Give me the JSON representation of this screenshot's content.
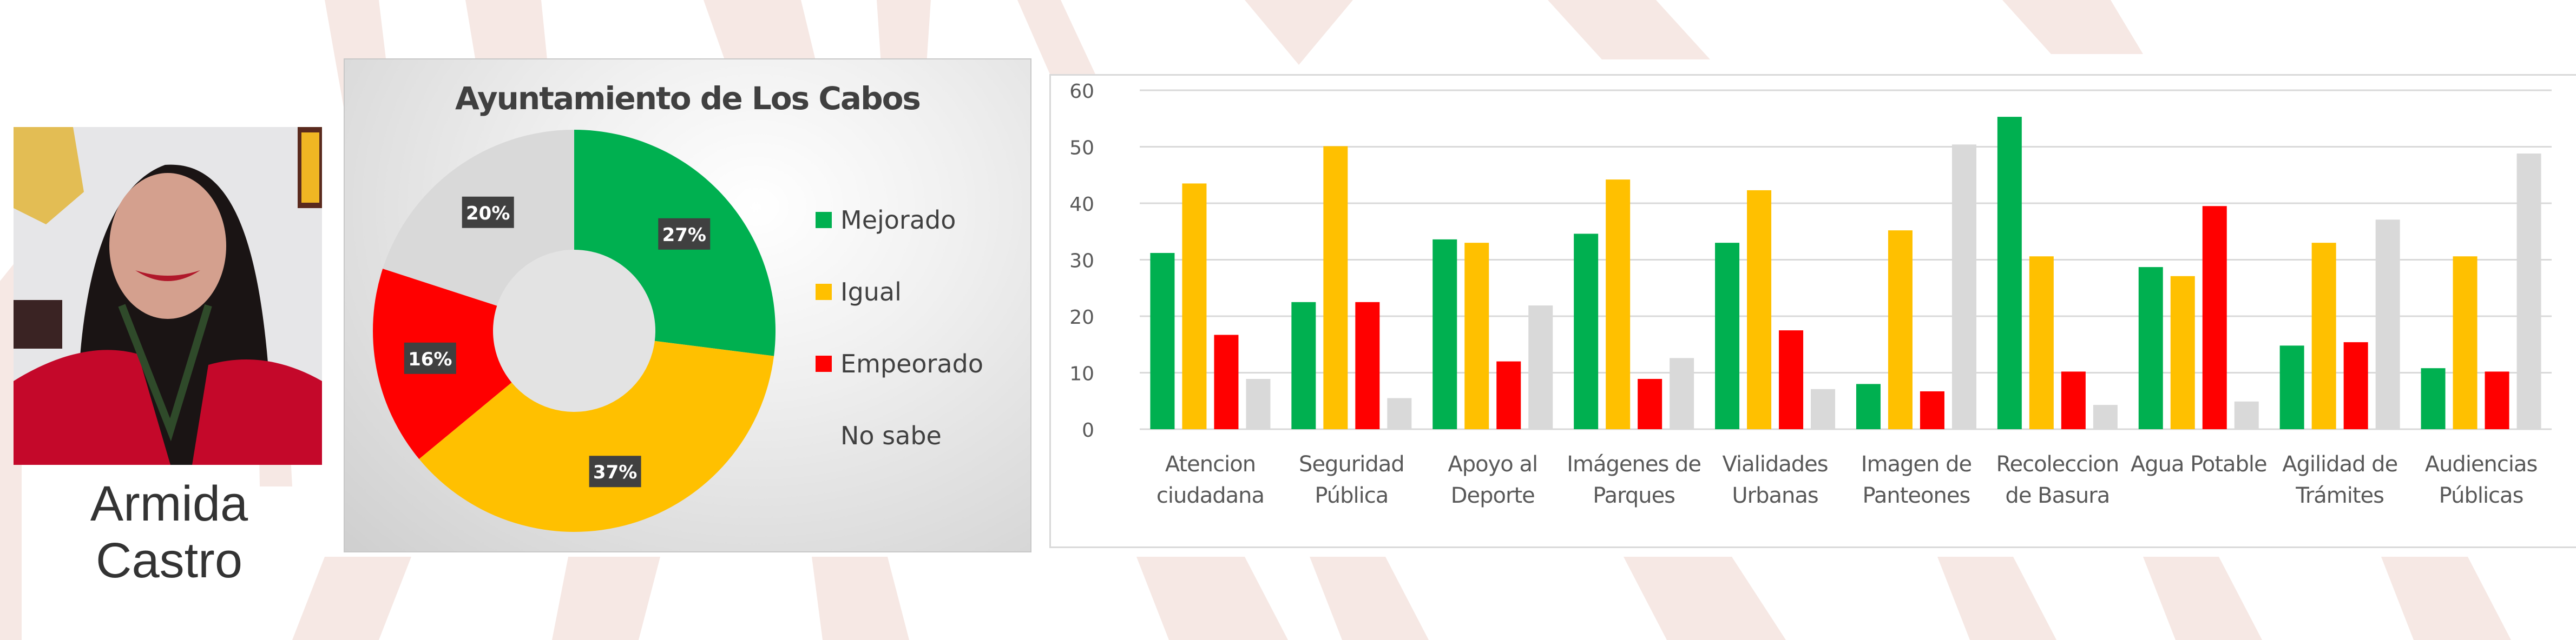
{
  "person": {
    "name": "Armida Castro",
    "photo_alt": "portrait-photo"
  },
  "chart_data": [
    {
      "type": "pie",
      "variant": "donut",
      "title": "Ayuntamiento de Los Cabos",
      "categories": [
        "Mejorado",
        "Igual",
        "Empeorado",
        "No sabe"
      ],
      "values": [
        27,
        37,
        16,
        20
      ],
      "labels": [
        "27%",
        "37%",
        "16%",
        "20%"
      ],
      "colors": [
        "#00B050",
        "#FFC000",
        "#FF0000",
        "#D9D9D9"
      ],
      "legend_position": "right"
    },
    {
      "type": "bar",
      "title": "",
      "xlabel": "",
      "ylabel": "",
      "ylim": [
        0,
        60
      ],
      "yticks": [
        0,
        10,
        20,
        30,
        40,
        50,
        60
      ],
      "grid": true,
      "legend": false,
      "categories": [
        "Atencion ciudadana",
        "Seguridad Pública",
        "Apoyo al Deporte",
        "Imágenes de Parques",
        "Vialidades Urbanas",
        "Imagen de Panteones",
        "Recoleccion de Basura",
        "Agua Potable",
        "Agilidad de Trámites",
        "Audiencias Públicas"
      ],
      "category_lines": [
        [
          "Atencion",
          "ciudadana"
        ],
        [
          "Seguridad",
          "Pública"
        ],
        [
          "Apoyo al",
          "Deporte"
        ],
        [
          "Imágenes de",
          "Parques"
        ],
        [
          "Vialidades",
          "Urbanas"
        ],
        [
          "Imagen de",
          "Panteones"
        ],
        [
          "Recoleccion",
          "de Basura"
        ],
        [
          "Agua Potable",
          ""
        ],
        [
          "Agilidad de",
          "Trámites"
        ],
        [
          "Audiencias",
          "Públicas"
        ]
      ],
      "series": [
        {
          "name": "Mejorado",
          "color": "#00B050",
          "values": [
            31.2,
            22.5,
            33.6,
            34.6,
            33.0,
            8.0,
            55.3,
            28.7,
            14.8,
            10.8
          ]
        },
        {
          "name": "Igual",
          "color": "#FFC000",
          "values": [
            43.5,
            50.1,
            33.0,
            44.2,
            42.3,
            35.2,
            30.6,
            27.1,
            33.0,
            30.6
          ]
        },
        {
          "name": "Empeorado",
          "color": "#FF0000",
          "values": [
            16.7,
            22.5,
            12.0,
            8.9,
            17.5,
            6.7,
            10.2,
            39.5,
            15.4,
            10.2
          ]
        },
        {
          "name": "No sabe",
          "color": "#D9D9D9",
          "values": [
            8.9,
            5.5,
            21.9,
            12.6,
            7.1,
            50.4,
            4.3,
            4.9,
            37.1,
            48.8
          ]
        }
      ]
    }
  ]
}
